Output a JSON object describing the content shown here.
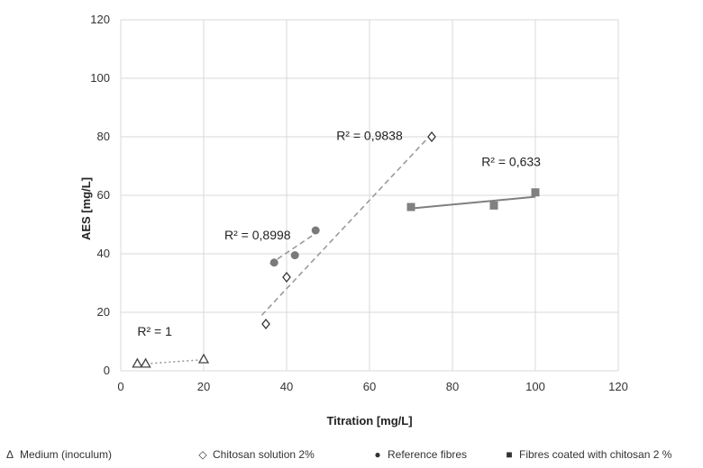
{
  "chart_data": {
    "type": "scatter",
    "xlabel": "Titration [mg/L]",
    "ylabel": "AES [mg/L]",
    "xlim": [
      0,
      120
    ],
    "ylim": [
      0,
      120
    ],
    "xticks": [
      0,
      20,
      40,
      60,
      80,
      100,
      120
    ],
    "yticks": [
      0,
      20,
      40,
      60,
      80,
      100,
      120
    ],
    "xtick_labels": [
      "0",
      "20",
      "40",
      "60",
      "80",
      "100",
      "120"
    ],
    "ytick_labels": [
      "0",
      "20",
      "40",
      "60",
      "80",
      "100",
      "120"
    ],
    "grid": "vertical and horizontal",
    "legend_position": "bottom",
    "series": [
      {
        "name": "Medium (inoculum)",
        "marker": "triangle",
        "legend_symbol": "Δ",
        "color": "#555555",
        "points": [
          [
            4,
            2.5
          ],
          [
            6,
            2.5
          ],
          [
            20,
            4
          ]
        ],
        "trendline": {
          "style": "dotted",
          "x": [
            4,
            20
          ],
          "y": [
            2.2,
            3.8
          ]
        },
        "r2_label": "R² = 1",
        "r2_anchor": [
          4,
          12
        ]
      },
      {
        "name": "Chitosan solution 2%",
        "marker": "diamond",
        "legend_symbol": "◇",
        "color": "#555555",
        "points": [
          [
            35,
            16
          ],
          [
            40,
            32
          ],
          [
            75,
            80
          ]
        ],
        "trendline": {
          "style": "dashed",
          "x": [
            34,
            75
          ],
          "y": [
            19,
            81
          ]
        },
        "r2_label": "R² = 0,9838",
        "r2_anchor": [
          52,
          79
        ]
      },
      {
        "name": "Reference fibres",
        "marker": "circle",
        "legend_symbol": "●",
        "color": "#7a7a7a",
        "points": [
          [
            37,
            37
          ],
          [
            42,
            39.5
          ],
          [
            47,
            48
          ]
        ],
        "trendline": {
          "style": "dashed",
          "x": [
            36,
            47
          ],
          "y": [
            36.5,
            47
          ]
        },
        "r2_label": "R² = 0,8998",
        "r2_anchor": [
          25,
          45
        ]
      },
      {
        "name": "Fibres coated with chitosan 2 %",
        "marker": "square",
        "legend_symbol": "■",
        "color": "#808080",
        "points": [
          [
            70,
            56
          ],
          [
            90,
            56.5
          ],
          [
            100,
            61
          ]
        ],
        "trendline": {
          "style": "solid",
          "x": [
            70,
            100
          ],
          "y": [
            55.5,
            59.5
          ]
        },
        "r2_label": "R² = 0,633",
        "r2_anchor": [
          87,
          70
        ]
      }
    ]
  }
}
